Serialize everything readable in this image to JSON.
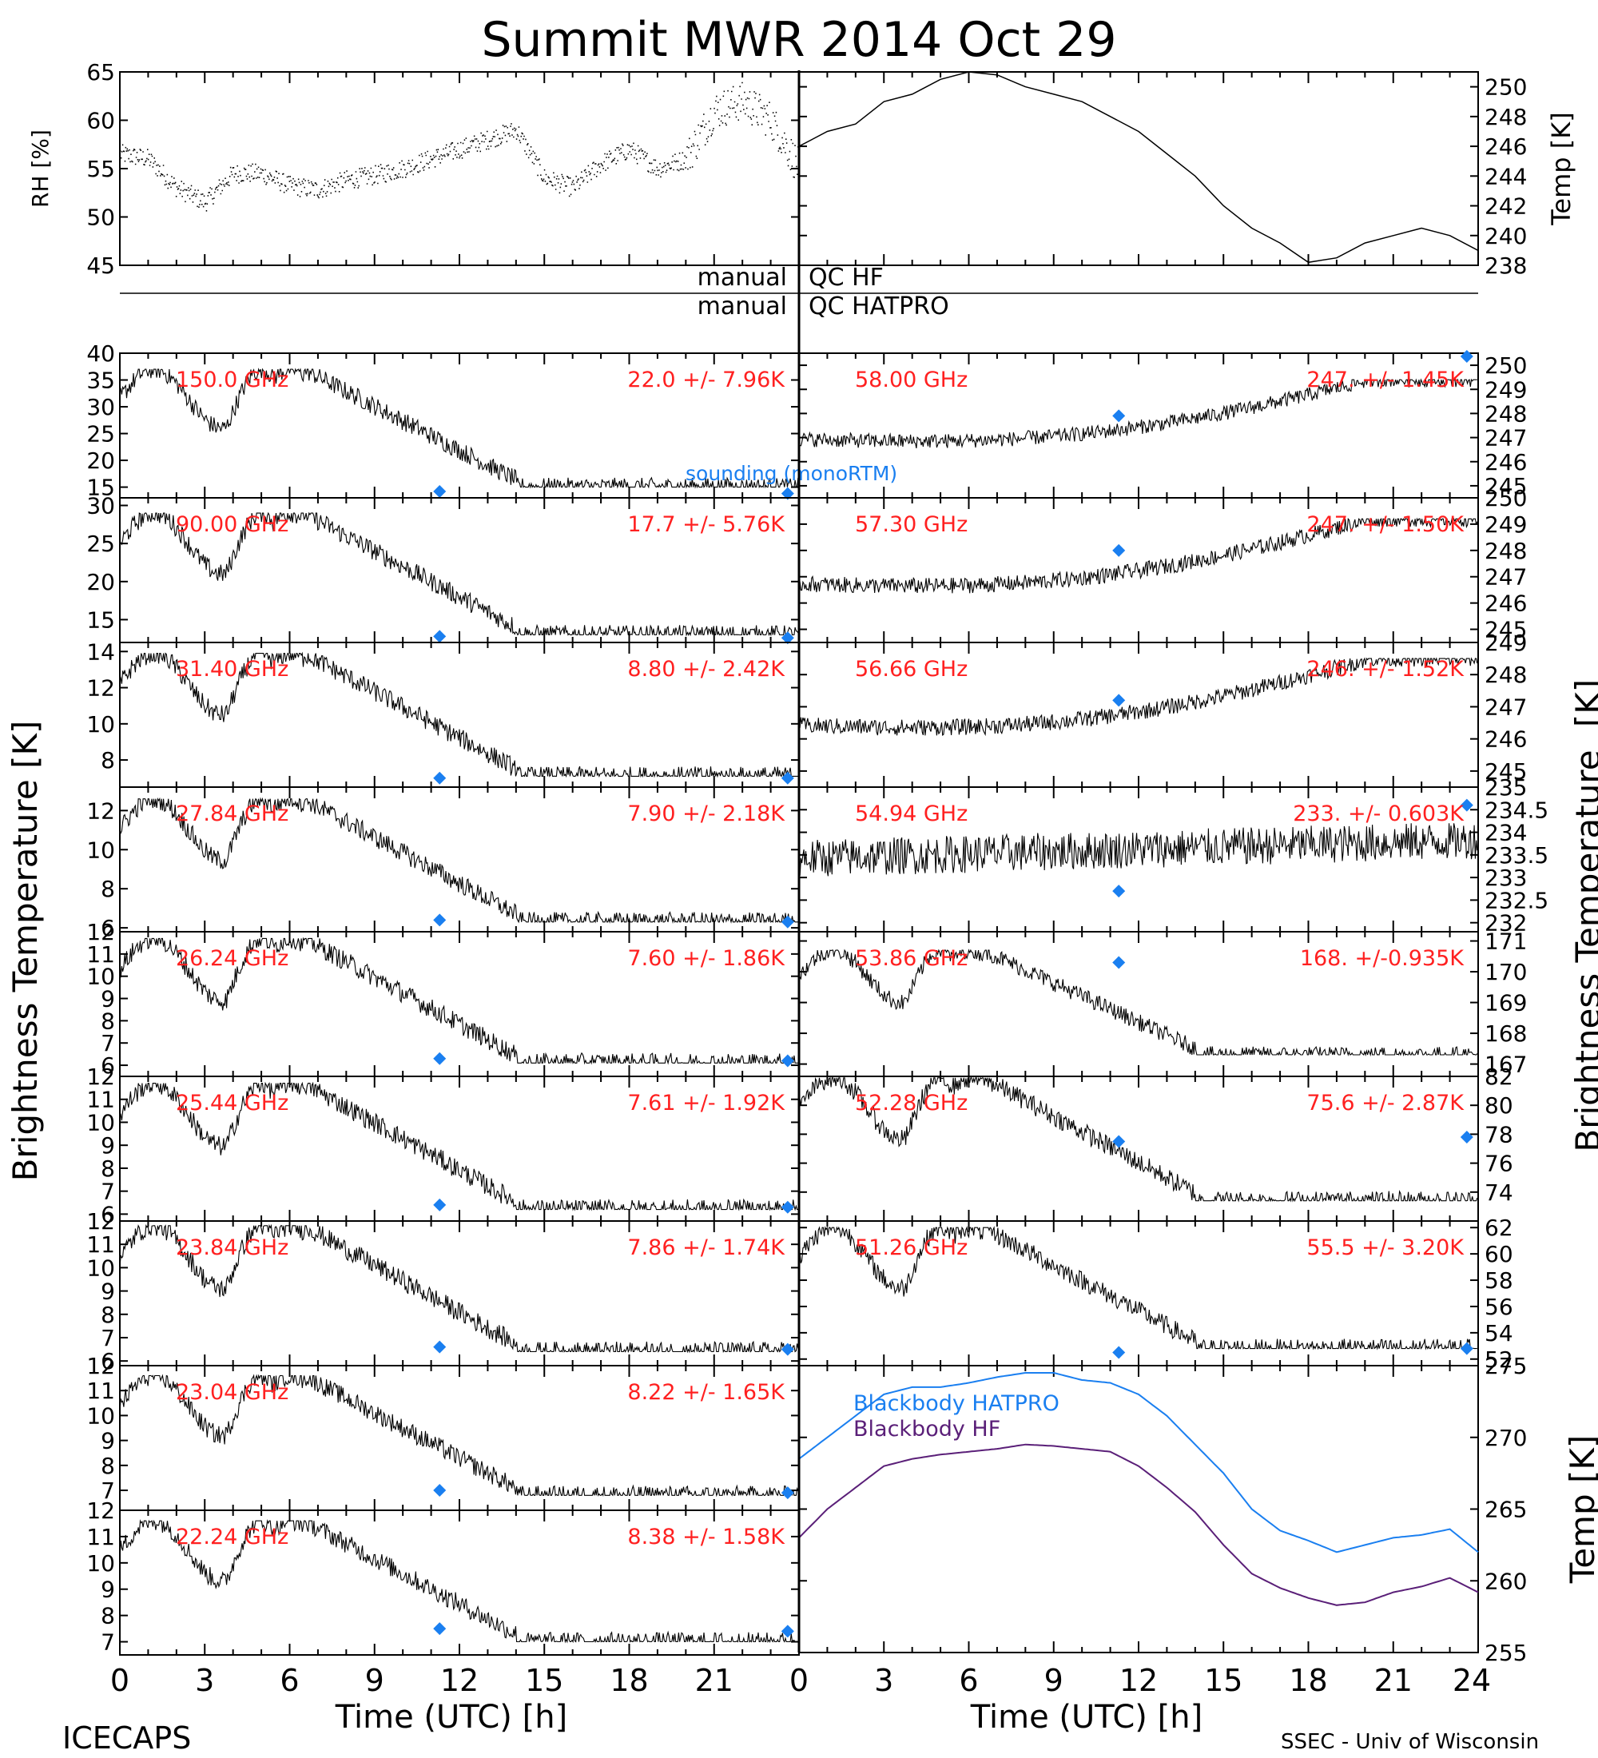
{
  "title": "Summit MWR 2014 Oct 29",
  "footer_left": "ICECAPS",
  "footer_right": "SSEC - Univ of Wisconsin",
  "left_ylabel": "Brightness Temperature [K]",
  "right_ylabel": "Brightness Temperature",
  "right_ylabel_unit": "[K]",
  "bb_ylabel": "Temp [K]",
  "qc": {
    "manual_1": "manual",
    "hf": "QC HF",
    "manual_2": "manual",
    "hatpro": "QC HATPRO"
  },
  "colors": {
    "red": "#ff2020",
    "blue": "#1a7ff0",
    "purple": "#5a1f78",
    "marker": "#1a7ff0"
  },
  "chart_data": [
    {
      "type": "scatter",
      "id": "rh",
      "ylabel": "RH [%]",
      "ylim": [
        45,
        65
      ],
      "yticks": [
        45,
        50,
        55,
        60,
        65
      ],
      "xlim": [
        0,
        24
      ],
      "x": [
        0,
        1,
        2,
        3,
        4,
        5,
        6,
        7,
        8,
        9,
        10,
        11,
        12,
        13,
        14,
        15,
        16,
        17,
        18,
        19,
        20,
        21,
        22,
        23,
        24
      ],
      "y": [
        56.5,
        56,
        53,
        51.5,
        54.5,
        54.5,
        53.2,
        52.8,
        53.8,
        54.3,
        55,
        56,
        57,
        58,
        59,
        54,
        53,
        55.5,
        57,
        55,
        56,
        61,
        62,
        60,
        55
      ]
    },
    {
      "type": "line",
      "id": "temp",
      "ylabel": "Temp [K]",
      "ylim": [
        238,
        251
      ],
      "yticks": [
        238,
        240,
        242,
        244,
        246,
        248,
        250
      ],
      "xlim": [
        0,
        24
      ],
      "x": [
        0,
        1,
        2,
        3,
        4,
        5,
        6,
        7,
        8,
        9,
        10,
        11,
        12,
        13,
        14,
        15,
        16,
        17,
        18,
        19,
        20,
        21,
        22,
        23,
        24
      ],
      "y": [
        246,
        247,
        247.5,
        249,
        249.5,
        250.5,
        251,
        250.8,
        250,
        249.5,
        249,
        248,
        247,
        245.5,
        244,
        242,
        240.5,
        239.5,
        238.2,
        238.5,
        239.5,
        240,
        240.5,
        240,
        239
      ]
    }
  ],
  "channels": [
    {
      "col": "left",
      "freq": "150.0 GHz",
      "stats": "22.0 +/-  7.96K",
      "ylim": [
        13,
        40
      ],
      "yticks": [
        15,
        20,
        25,
        30,
        35,
        40
      ],
      "base": 15,
      "amp": 22,
      "m": [
        {
          "x": 11.3,
          "y": 14.2
        },
        {
          "x": 23.6,
          "y": 13.8
        }
      ]
    },
    {
      "col": "left",
      "freq": "90.00 GHz",
      "stats": "17.7 +/-  5.76K",
      "ylim": [
        12,
        31
      ],
      "yticks": [
        15,
        20,
        25,
        30
      ],
      "base": 13,
      "amp": 16,
      "m": [
        {
          "x": 11.3,
          "y": 12.8
        },
        {
          "x": 23.6,
          "y": 12.6
        }
      ]
    },
    {
      "col": "left",
      "freq": "31.40 GHz",
      "stats": "8.80 +/- 2.42K",
      "ylim": [
        6.5,
        14.5
      ],
      "yticks": [
        8,
        10,
        12,
        14
      ],
      "base": 7.1,
      "amp": 6.8,
      "m": [
        {
          "x": 11.3,
          "y": 7.0
        },
        {
          "x": 23.6,
          "y": 7.0
        }
      ]
    },
    {
      "col": "left",
      "freq": "27.84 GHz",
      "stats": "7.90 +/- 2.18K",
      "ylim": [
        5.8,
        13.2
      ],
      "yticks": [
        6,
        8,
        10,
        12
      ],
      "base": 6.3,
      "amp": 6.3,
      "m": [
        {
          "x": 11.3,
          "y": 6.4
        },
        {
          "x": 23.6,
          "y": 6.3
        }
      ]
    },
    {
      "col": "left",
      "freq": "26.24 GHz",
      "stats": "7.60 +/- 1.86K",
      "ylim": [
        5.5,
        12
      ],
      "yticks": [
        6,
        7,
        8,
        9,
        10,
        11,
        12
      ],
      "base": 6.1,
      "amp": 5.6,
      "m": [
        {
          "x": 11.3,
          "y": 6.3
        },
        {
          "x": 23.6,
          "y": 6.2
        }
      ]
    },
    {
      "col": "left",
      "freq": "25.44 GHz",
      "stats": "7.61 +/- 1.92K",
      "ylim": [
        5.7,
        12
      ],
      "yticks": [
        6,
        7,
        8,
        9,
        10,
        11,
        12
      ],
      "base": 6.2,
      "amp": 5.5,
      "m": [
        {
          "x": 11.3,
          "y": 6.4
        },
        {
          "x": 23.6,
          "y": 6.3
        }
      ]
    },
    {
      "col": "left",
      "freq": "23.84 GHz",
      "stats": "7.86 +/- 1.74K",
      "ylim": [
        5.8,
        12
      ],
      "yticks": [
        6,
        7,
        8,
        9,
        10,
        11,
        12
      ],
      "base": 6.4,
      "amp": 5.4,
      "m": [
        {
          "x": 11.3,
          "y": 6.6
        },
        {
          "x": 23.6,
          "y": 6.5
        }
      ]
    },
    {
      "col": "left",
      "freq": "23.04 GHz",
      "stats": "8.22 +/- 1.65K",
      "ylim": [
        6.2,
        12
      ],
      "yticks": [
        7,
        8,
        9,
        10,
        11,
        12
      ],
      "base": 6.8,
      "amp": 4.8,
      "m": [
        {
          "x": 11.3,
          "y": 7.0
        },
        {
          "x": 23.6,
          "y": 6.9
        }
      ]
    },
    {
      "col": "left",
      "freq": "22.24 GHz",
      "stats": "8.38 +/- 1.58K",
      "ylim": [
        6.5,
        12
      ],
      "yticks": [
        7,
        8,
        9,
        10,
        11,
        12
      ],
      "base": 7.0,
      "amp": 4.6,
      "m": [
        {
          "x": 11.3,
          "y": 7.5
        },
        {
          "x": 23.6,
          "y": 7.4
        }
      ]
    },
    {
      "col": "right",
      "freq": "58.00 GHz",
      "stats": "247. +/- 1.45K",
      "ylim": [
        244.5,
        250.5
      ],
      "yticks": [
        245,
        246,
        247,
        248,
        249,
        250
      ],
      "base": 245.6,
      "amp": 3.8,
      "kind": "temp",
      "m": [
        {
          "x": 11.3,
          "y": 247.9
        },
        {
          "x": 23.6,
          "y": 250.5
        }
      ]
    },
    {
      "col": "right",
      "freq": "57.30 GHz",
      "stats": "247. +/- 1.50K",
      "ylim": [
        244.5,
        250
      ],
      "yticks": [
        245,
        246,
        247,
        248,
        249,
        250
      ],
      "base": 245.4,
      "amp": 3.8,
      "kind": "temp",
      "m": [
        {
          "x": 11.3,
          "y": 248
        }
      ]
    },
    {
      "col": "right",
      "freq": "56.66 GHz",
      "stats": "246. +/- 1.52K",
      "ylim": [
        244.5,
        249
      ],
      "yticks": [
        245,
        246,
        247,
        248,
        249
      ],
      "base": 245.3,
      "amp": 3.2,
      "kind": "temp",
      "m": [
        {
          "x": 11.3,
          "y": 247.2
        }
      ]
    },
    {
      "col": "right",
      "freq": "54.94 GHz",
      "stats": "233. +/- 0.603K",
      "ylim": [
        231.8,
        235
      ],
      "yticks": [
        232,
        232.5,
        233,
        233.5,
        234,
        234.5,
        235
      ],
      "base": 233.0,
      "amp": 1.2,
      "kind": "noisy",
      "m": [
        {
          "x": 11.3,
          "y": 232.7
        },
        {
          "x": 23.6,
          "y": 234.6
        }
      ]
    },
    {
      "col": "right",
      "freq": "53.86 GHz",
      "stats": "168. +/-0.935K",
      "ylim": [
        166.6,
        171.3
      ],
      "yticks": [
        167,
        168,
        169,
        170,
        171
      ],
      "base": 167.3,
      "amp": 3.4,
      "m": [
        {
          "x": 11.3,
          "y": 170.3
        }
      ]
    },
    {
      "col": "right",
      "freq": "52.28 GHz",
      "stats": "75.6 +/- 2.87K",
      "ylim": [
        72,
        82
      ],
      "yticks": [
        74,
        76,
        78,
        80,
        82
      ],
      "base": 73.4,
      "amp": 8.5,
      "m": [
        {
          "x": 11.3,
          "y": 77.5
        },
        {
          "x": 23.6,
          "y": 77.8
        }
      ]
    },
    {
      "col": "right",
      "freq": "51.26 GHz",
      "stats": "55.5 +/- 3.20K",
      "ylim": [
        51.5,
        62.5
      ],
      "yticks": [
        52,
        54,
        56,
        58,
        60,
        62
      ],
      "base": 52.8,
      "amp": 9.2,
      "m": [
        {
          "x": 11.3,
          "y": 52.5
        },
        {
          "x": 23.6,
          "y": 52.8
        }
      ]
    }
  ],
  "sounding_label": "sounding (monoRTM)",
  "blackbody": {
    "ylim": [
      255,
      275
    ],
    "yticks": [
      255,
      260,
      265,
      270,
      275
    ],
    "x": [
      0,
      1,
      2,
      3,
      4,
      5,
      6,
      7,
      8,
      9,
      10,
      11,
      12,
      13,
      14,
      15,
      16,
      17,
      18,
      19,
      20,
      21,
      22,
      23,
      24
    ],
    "series": [
      {
        "name": "Blackbody HATPRO",
        "y": [
          268.5,
          270,
          271.5,
          273,
          273.5,
          273.5,
          273.8,
          274.2,
          274.5,
          274.5,
          274,
          273.8,
          273,
          271.5,
          269.5,
          267.5,
          265,
          263.5,
          262.8,
          262,
          262.5,
          263,
          263.2,
          263.6,
          262
        ]
      },
      {
        "name": "Blackbody HF",
        "y": [
          263,
          265,
          266.5,
          268,
          268.5,
          268.8,
          269,
          269.2,
          269.5,
          269.4,
          269.2,
          269,
          268,
          266.5,
          264.8,
          262.5,
          260.5,
          259.5,
          258.8,
          258.3,
          258.5,
          259.2,
          259.6,
          260.2,
          259.2
        ]
      }
    ]
  },
  "xaxis": {
    "left_ticks": [
      "0",
      "3",
      "6",
      "9",
      "12",
      "15",
      "18",
      "21"
    ],
    "right_ticks": [
      "0",
      "3",
      "6",
      "9",
      "12",
      "15",
      "18",
      "21",
      "24"
    ],
    "label": "Time (UTC) [h]"
  }
}
